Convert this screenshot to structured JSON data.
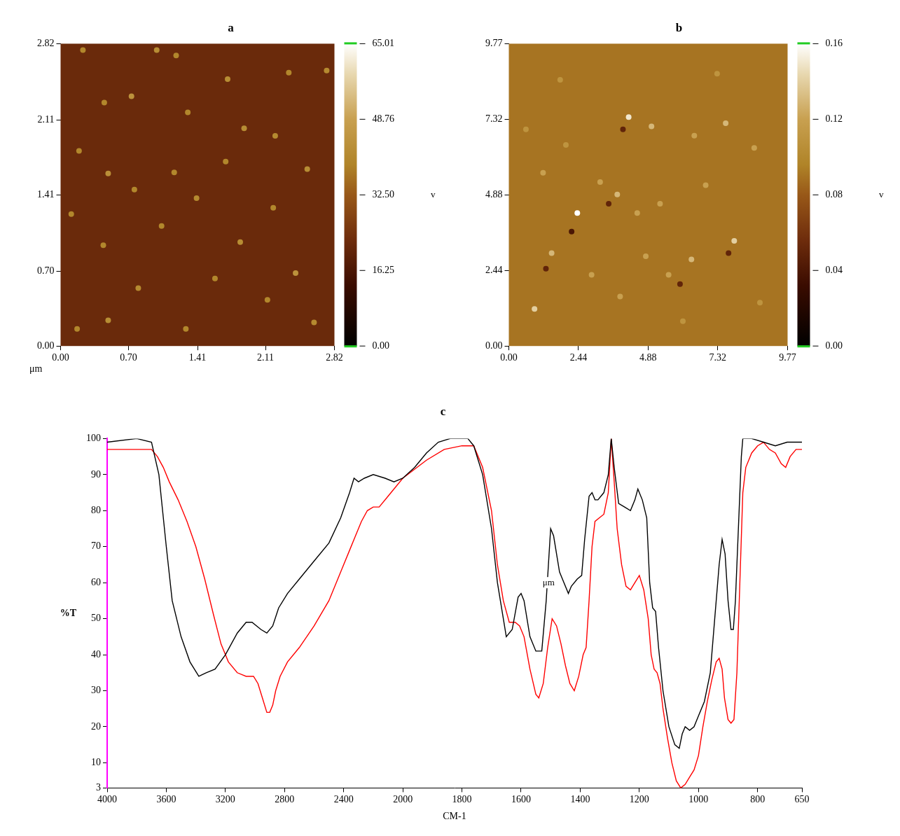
{
  "chart_data": [
    {
      "type": "image",
      "title": "a",
      "x_label": "μm",
      "xlim": [
        0,
        2.82
      ],
      "xticks": [
        {
          "value": 0,
          "label": "0.00"
        },
        {
          "value": 0.7,
          "label": "0.70"
        },
        1.41,
        2.11,
        2.82
      ],
      "ylim": [
        0,
        2.82
      ],
      "yticks": [
        {
          "value": 0,
          "label": "0.00"
        },
        {
          "value": 0.7,
          "label": "0.70"
        },
        1.41,
        2.11,
        2.82
      ],
      "colorbar": {
        "range": [
          0,
          65.01
        ],
        "ticks": [
          {
            "value": 0,
            "label": "0.00"
          },
          16.25,
          {
            "value": 32.5,
            "label": "32.50"
          },
          48.76,
          65.01
        ],
        "label": "v"
      },
      "background": 22,
      "particles": [
        [
          0.23,
          2.76,
          40
        ],
        [
          0.99,
          2.76,
          42
        ],
        [
          1.19,
          2.71,
          40
        ],
        [
          0.73,
          2.33,
          44
        ],
        [
          1.72,
          2.49,
          42
        ],
        [
          2.35,
          2.55,
          40
        ],
        [
          2.74,
          2.57,
          41
        ],
        [
          1.31,
          2.18,
          40
        ],
        [
          0.45,
          2.27,
          40
        ],
        [
          1.89,
          2.03,
          42
        ],
        [
          0.19,
          1.82,
          40
        ],
        [
          2.21,
          1.96,
          41
        ],
        [
          1.7,
          1.72,
          40
        ],
        [
          0.49,
          1.61,
          43
        ],
        [
          1.17,
          1.62,
          40
        ],
        [
          2.54,
          1.65,
          42
        ],
        [
          0.76,
          1.46,
          40
        ],
        [
          1.4,
          1.38,
          41
        ],
        [
          2.19,
          1.29,
          40
        ],
        [
          0.11,
          1.23,
          40
        ],
        [
          1.04,
          1.12,
          40
        ],
        [
          1.85,
          0.97,
          42
        ],
        [
          0.44,
          0.94,
          40
        ],
        [
          2.42,
          0.68,
          44
        ],
        [
          1.59,
          0.63,
          40
        ],
        [
          0.8,
          0.54,
          41
        ],
        [
          2.13,
          0.43,
          40
        ],
        [
          0.49,
          0.24,
          42
        ],
        [
          1.29,
          0.16,
          40
        ],
        [
          2.61,
          0.22,
          41
        ],
        [
          0.17,
          0.16,
          40
        ]
      ]
    },
    {
      "type": "image",
      "title": "b",
      "xlim": [
        0,
        9.77
      ],
      "xticks": [
        {
          "value": 0,
          "label": "0.00"
        },
        2.44,
        4.88,
        7.32,
        9.77
      ],
      "ylim": [
        0,
        9.77
      ],
      "yticks": [
        {
          "value": 0,
          "label": "0.00"
        },
        2.44,
        4.88,
        7.32,
        9.77
      ],
      "colorbar": {
        "range": [
          0,
          0.16
        ],
        "ticks": [
          {
            "value": 0,
            "label": "0.00"
          },
          0.04,
          0.08,
          0.12,
          0.16
        ],
        "label": "v"
      },
      "background": 0.09,
      "particles": [
        [
          2.4,
          4.3,
          0.16
        ],
        [
          7.9,
          3.4,
          0.14
        ],
        [
          4.2,
          7.4,
          0.15
        ],
        [
          5.0,
          7.1,
          0.13
        ],
        [
          6.5,
          6.8,
          0.12
        ],
        [
          7.6,
          7.2,
          0.13
        ],
        [
          1.5,
          3.0,
          0.13
        ],
        [
          0.9,
          1.2,
          0.14
        ],
        [
          3.2,
          5.3,
          0.12
        ],
        [
          3.8,
          4.9,
          0.13
        ],
        [
          4.5,
          4.3,
          0.12
        ],
        [
          5.3,
          4.6,
          0.12
        ],
        [
          2.9,
          2.3,
          0.12
        ],
        [
          3.9,
          1.6,
          0.12
        ],
        [
          5.6,
          2.3,
          0.12
        ],
        [
          6.4,
          2.8,
          0.13
        ],
        [
          6.9,
          5.2,
          0.12
        ],
        [
          8.6,
          6.4,
          0.12
        ],
        [
          1.2,
          5.6,
          0.12
        ],
        [
          0.6,
          7.0,
          0.11
        ],
        [
          2.0,
          6.5,
          0.11
        ],
        [
          6.1,
          0.8,
          0.11
        ],
        [
          8.8,
          1.4,
          0.11
        ],
        [
          1.8,
          8.6,
          0.11
        ],
        [
          7.3,
          8.8,
          0.11
        ],
        [
          4.8,
          2.9,
          0.12
        ],
        [
          2.2,
          3.7,
          0.04
        ],
        [
          3.5,
          4.6,
          0.05
        ],
        [
          1.3,
          2.5,
          0.05
        ],
        [
          6.0,
          2.0,
          0.05
        ],
        [
          4.0,
          7.0,
          0.05
        ],
        [
          7.7,
          3.0,
          0.05
        ]
      ]
    },
    {
      "type": "line",
      "title": "c",
      "x_label": "CM-1",
      "y_label": "%T",
      "grid": false,
      "xlim": [
        4000,
        650
      ],
      "xticks": [
        4000,
        3600,
        3200,
        2800,
        2400,
        2000,
        1800,
        1600,
        1400,
        1200,
        1000,
        800,
        650
      ],
      "ylim": [
        3,
        100
      ],
      "yticks": [
        3,
        10,
        20,
        30,
        40,
        50,
        60,
        70,
        80,
        90,
        100
      ],
      "annotations": [
        {
          "text": "μm",
          "x": 1507,
          "y": 60
        }
      ],
      "series": [
        {
          "color": "#000000",
          "x": [
            4000,
            3800,
            3700,
            3650,
            3600,
            3560,
            3500,
            3440,
            3380,
            3330,
            3270,
            3200,
            3120,
            3060,
            3020,
            2960,
            2920,
            2880,
            2840,
            2780,
            2700,
            2600,
            2500,
            2420,
            2360,
            2330,
            2300,
            2260,
            2200,
            2120,
            2060,
            2000,
            1960,
            1920,
            1880,
            1840,
            1780,
            1760,
            1730,
            1700,
            1680,
            1660,
            1650,
            1630,
            1610,
            1600,
            1590,
            1570,
            1550,
            1530,
            1515,
            1500,
            1490,
            1480,
            1470,
            1455,
            1440,
            1430,
            1410,
            1395,
            1385,
            1370,
            1360,
            1350,
            1340,
            1320,
            1305,
            1295,
            1285,
            1270,
            1250,
            1230,
            1215,
            1205,
            1190,
            1175,
            1165,
            1155,
            1145,
            1135,
            1120,
            1100,
            1080,
            1065,
            1055,
            1045,
            1030,
            1015,
            1000,
            980,
            960,
            945,
            930,
            920,
            910,
            900,
            890,
            882,
            875,
            865,
            855,
            850,
            820,
            780,
            740,
            700,
            650
          ],
          "values": [
            99,
            100,
            99,
            90,
            70,
            55,
            45,
            38,
            34,
            35,
            36,
            40,
            46,
            49,
            49,
            47,
            46,
            48,
            53,
            57,
            61,
            66,
            71,
            78,
            85,
            89,
            88,
            89,
            90,
            89,
            88,
            89,
            92,
            96,
            99,
            100,
            100,
            98,
            90,
            75,
            60,
            50,
            45,
            47,
            56,
            57,
            55,
            45,
            41,
            41,
            55,
            75,
            73,
            68,
            63,
            60,
            57,
            59,
            61,
            62,
            72,
            84,
            85,
            83,
            83,
            85,
            90,
            100,
            92,
            82,
            81,
            80,
            83,
            86,
            83,
            78,
            60,
            53,
            52,
            42,
            30,
            20,
            15,
            14,
            18,
            20,
            19,
            20,
            23,
            27,
            35,
            50,
            65,
            72,
            68,
            55,
            47,
            47,
            55,
            75,
            95,
            100,
            100,
            99,
            98,
            99,
            99
          ]
        },
        {
          "color": "#ff0000",
          "x": [
            4000,
            3900,
            3800,
            3700,
            3660,
            3620,
            3580,
            3520,
            3460,
            3400,
            3340,
            3280,
            3230,
            3180,
            3120,
            3060,
            3010,
            2980,
            2950,
            2920,
            2900,
            2880,
            2860,
            2830,
            2780,
            2700,
            2600,
            2500,
            2420,
            2360,
            2320,
            2280,
            2240,
            2200,
            2160,
            2100,
            2000,
            1920,
            1860,
            1800,
            1760,
            1730,
            1700,
            1680,
            1660,
            1640,
            1620,
            1605,
            1590,
            1570,
            1550,
            1540,
            1525,
            1510,
            1495,
            1480,
            1465,
            1450,
            1435,
            1420,
            1405,
            1390,
            1380,
            1370,
            1360,
            1350,
            1335,
            1320,
            1305,
            1295,
            1285,
            1275,
            1260,
            1245,
            1230,
            1215,
            1200,
            1185,
            1170,
            1160,
            1150,
            1140,
            1130,
            1120,
            1105,
            1090,
            1075,
            1060,
            1045,
            1030,
            1015,
            1000,
            985,
            970,
            955,
            940,
            930,
            920,
            912,
            900,
            890,
            880,
            870,
            860,
            850,
            840,
            820,
            800,
            780,
            760,
            740,
            720,
            705,
            690,
            670,
            650
          ],
          "values": [
            97,
            97,
            97,
            97,
            95,
            92,
            88,
            83,
            77,
            70,
            61,
            51,
            43,
            38,
            35,
            34,
            34,
            32,
            28,
            24,
            24,
            26,
            30,
            34,
            38,
            42,
            48,
            55,
            63,
            69,
            73,
            77,
            80,
            81,
            81,
            84,
            89,
            94,
            97,
            98,
            98,
            92,
            80,
            65,
            55,
            49,
            49,
            48,
            45,
            36,
            29,
            28,
            32,
            42,
            50,
            48,
            43,
            37,
            32,
            30,
            34,
            40,
            42,
            55,
            70,
            77,
            78,
            79,
            85,
            100,
            88,
            75,
            65,
            59,
            58,
            60,
            62,
            58,
            50,
            40,
            36,
            35,
            32,
            25,
            17,
            10,
            5,
            3,
            4,
            6,
            8,
            12,
            20,
            27,
            33,
            38,
            39,
            36,
            28,
            22,
            21,
            22,
            35,
            60,
            85,
            92,
            96,
            98,
            99,
            97,
            96,
            93,
            92,
            95,
            97,
            97
          ]
        }
      ]
    }
  ]
}
